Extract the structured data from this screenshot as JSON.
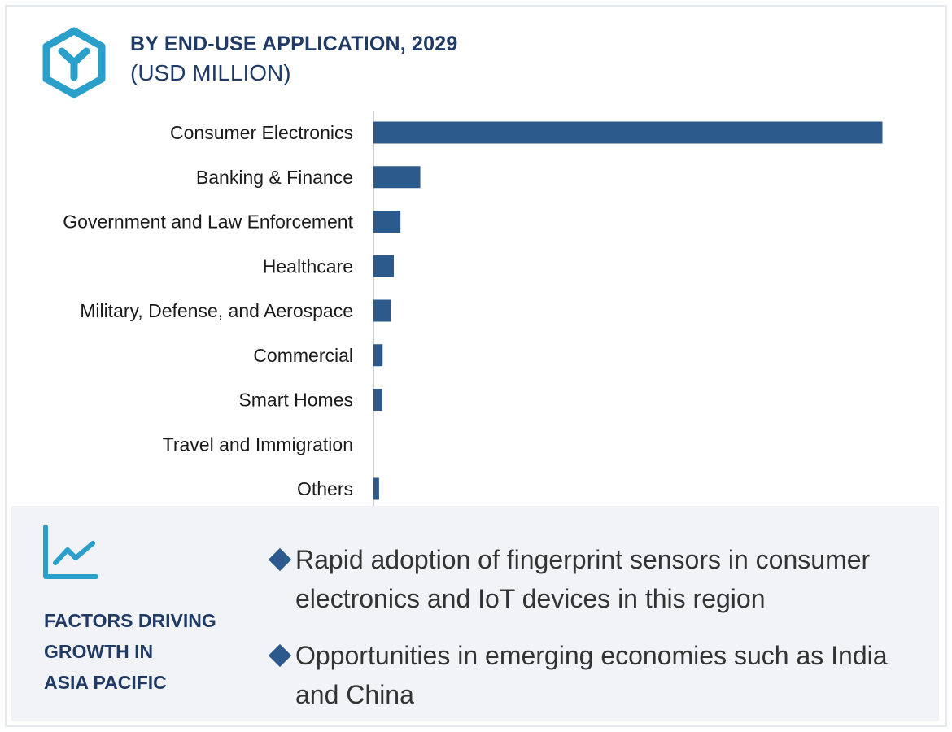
{
  "header": {
    "title": "BY END-USE APPLICATION, 2029",
    "subtitle": "(USD MILLION)",
    "logo_icon": "hexagon-y-logo-icon"
  },
  "colors": {
    "bar": "#2d5a8c",
    "title": "#1f3a64",
    "logo": "#2a9fc9",
    "panel_bg": "#f1f3f7",
    "axis": "#bfbfbf"
  },
  "chart_data": {
    "type": "bar",
    "orientation": "horizontal",
    "title": "BY END-USE APPLICATION, 2029",
    "subtitle": "(USD MILLION)",
    "categories": [
      "Consumer Electronics",
      "Banking & Finance",
      "Government and Law Enforcement",
      "Healthcare",
      "Military, Defense, and Aerospace",
      "Commercial",
      "Smart Homes",
      "Travel and Immigration",
      "Others"
    ],
    "values": [
      100,
      9.2,
      5.3,
      4.0,
      3.4,
      1.8,
      1.7,
      0,
      1.1
    ],
    "xlim": [
      0,
      106
    ],
    "xlabel": "",
    "ylabel": "",
    "grid": false,
    "legend": "none"
  },
  "factors": {
    "icon": "line-chart-trend-icon",
    "title_lines": [
      "FACTORS DRIVING",
      "GROWTH IN",
      "ASIA PACIFIC"
    ],
    "bullets": [
      "Rapid adoption of fingerprint sensors in consumer electronics and IoT devices in this region",
      "Opportunities in emerging economies such as India and China"
    ]
  }
}
